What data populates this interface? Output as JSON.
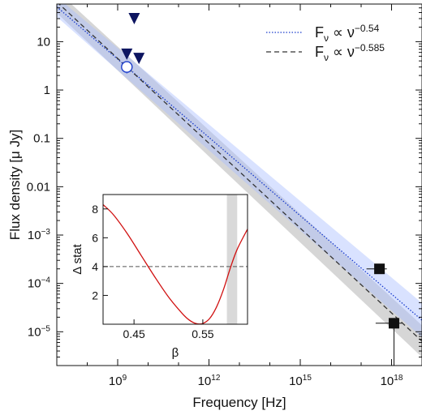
{
  "chart_data": [
    {
      "type": "scatter",
      "title": "",
      "xlabel": "Frequency [Hz]",
      "ylabel": "Flux density [μ Jy]",
      "x_scale": "log",
      "y_scale": "log",
      "xlim": [
        10000000.0,
        1e+19
      ],
      "ylim": [
        2e-06,
        60
      ],
      "grid": false,
      "legend_position": "top-right",
      "x_ticks": [
        {
          "value": 1000000000.0,
          "base": "10",
          "exp": "9"
        },
        {
          "value": 1000000000000.0,
          "base": "10",
          "exp": "12"
        },
        {
          "value": 1000000000000000.0,
          "base": "10",
          "exp": "15"
        },
        {
          "value": 1e+18,
          "base": "10",
          "exp": "18"
        }
      ],
      "y_ticks": [
        {
          "value": 10,
          "label": "10",
          "exp": ""
        },
        {
          "value": 1,
          "label": "1",
          "exp": ""
        },
        {
          "value": 0.1,
          "label": "0.1",
          "exp": ""
        },
        {
          "value": 0.01,
          "label": "0.01",
          "exp": ""
        },
        {
          "value": 0.001,
          "label": "10",
          "exp": "−3"
        },
        {
          "value": 0.0001,
          "label": "10",
          "exp": "−4"
        },
        {
          "value": 1e-05,
          "label": "10",
          "exp": "−5"
        }
      ],
      "series": [
        {
          "name_prefix": "F",
          "name_sub": "ν",
          "name_mid": " ∝ ν",
          "name_exp": "−0.54",
          "style": "dotted",
          "color": "#1a3ccc",
          "band_color": "#aabfff",
          "spectral_index": -0.54,
          "anchor": {
            "x": 2000000000.0,
            "y": 3.0
          }
        },
        {
          "name_prefix": "F",
          "name_sub": "ν",
          "name_mid": " ∝ ν",
          "name_exp": "−0.585",
          "style": "dashed",
          "color": "#333333",
          "band_color": "#c8c8c8",
          "spectral_index": -0.585,
          "anchor": {
            "x": 2000000000.0,
            "y": 3.0
          }
        }
      ],
      "upper_limits": [
        {
          "x": 3500000000.0,
          "y": 30
        },
        {
          "x": 2000000000.0,
          "y": 5.5
        },
        {
          "x": 5000000000.0,
          "y": 4.5
        }
      ],
      "detections": [
        {
          "x": 2000000000.0,
          "y": 3.0,
          "y_err_low": 0.8,
          "marker": "open-circle"
        },
        {
          "x": 4e+17,
          "y": 0.0002,
          "x_err": [
            1.5e+17,
            7e+17
          ],
          "marker": "square"
        },
        {
          "x": 1.2e+18,
          "y": 1.5e-05,
          "x_err": [
            3e+17,
            2.2e+18
          ],
          "y_err_low": 1.35e-05,
          "marker": "square"
        }
      ],
      "colors": {
        "upper_limit": "#0d1560",
        "detection": "#111111",
        "circle_edge": "#1a3ccc"
      }
    },
    {
      "type": "line",
      "title": "",
      "xlabel": "β",
      "ylabel": "Δ stat",
      "xlim": [
        0.405,
        0.615
      ],
      "ylim": [
        0,
        9
      ],
      "x_ticks": [
        {
          "value": 0.45,
          "label": "0.45"
        },
        {
          "value": 0.55,
          "label": "0.55"
        }
      ],
      "y_ticks": [
        {
          "value": 2,
          "label": "2"
        },
        {
          "value": 4,
          "label": "4"
        },
        {
          "value": 6,
          "label": "6"
        },
        {
          "value": 8,
          "label": "8"
        }
      ],
      "threshold": 4,
      "shaded_band": [
        0.585,
        0.6
      ],
      "curve": {
        "color": "#d01010",
        "x": [
          0.405,
          0.42,
          0.44,
          0.46,
          0.48,
          0.5,
          0.52,
          0.53,
          0.54,
          0.55,
          0.56,
          0.57,
          0.58,
          0.59,
          0.6,
          0.615
        ],
        "y": [
          8.3,
          7.6,
          6.3,
          4.8,
          3.3,
          1.9,
          0.75,
          0.3,
          0.05,
          0.05,
          0.4,
          1.2,
          2.4,
          3.9,
          5.2,
          6.6
        ]
      }
    }
  ]
}
